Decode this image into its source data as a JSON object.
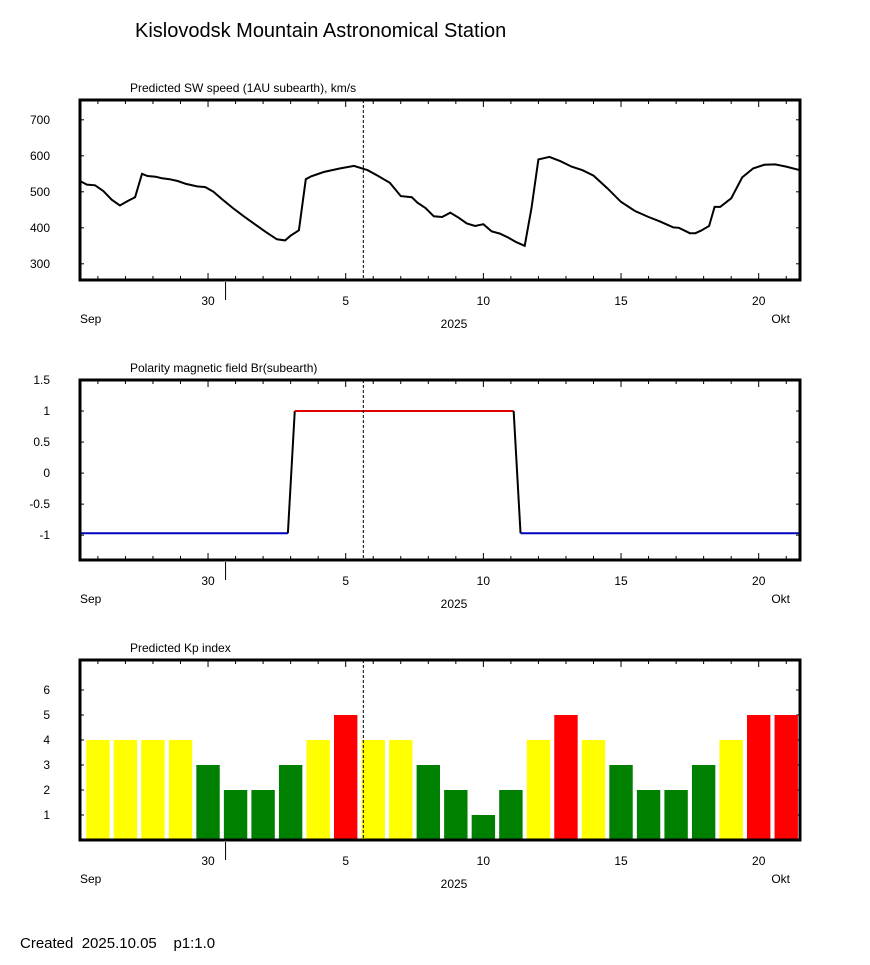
{
  "title": "Kislovodsk Mountain Astronomical Station",
  "footer": "Created  2025.10.05    p1:1.0",
  "x_axis": {
    "ticks": [
      {
        "day": 30,
        "label": "30"
      },
      {
        "day": 35,
        "label": "5"
      },
      {
        "day": 40,
        "label": "10"
      },
      {
        "day": 45,
        "label": "15"
      },
      {
        "day": 50,
        "label": "20"
      }
    ],
    "start_label": "Sep",
    "end_label": "Okt",
    "year_label": "2025",
    "month_boundary_day": 31,
    "range": [
      25.35,
      51.5
    ],
    "current_day": 35.64
  },
  "chart_data": [
    {
      "type": "line",
      "title": "Predicted SW speed (1AU subearth), km/s",
      "ylim": [
        255,
        755
      ],
      "yticks": [
        300,
        400,
        500,
        600,
        700
      ],
      "color": "#000000",
      "series": [
        {
          "x": [
            25.35,
            25.6,
            25.9,
            26.2,
            26.5,
            26.8,
            27.1,
            27.35,
            27.6,
            27.8,
            28.1,
            28.3,
            28.6,
            28.9,
            29.2,
            29.6,
            29.9,
            30.2,
            30.5,
            30.9,
            31.3,
            31.7,
            32.1,
            32.5,
            32.8,
            33.0,
            33.3,
            33.55,
            33.75,
            34.2,
            34.8,
            35.3,
            35.8,
            36.2,
            36.6,
            37.0,
            37.4,
            37.6,
            37.9,
            38.2,
            38.5,
            38.8,
            39.1,
            39.4,
            39.7,
            40.0,
            40.3,
            40.6,
            40.9,
            41.2,
            41.5,
            41.75,
            42.0,
            42.4,
            42.8,
            43.2,
            43.6,
            44.0,
            44.5,
            45.0,
            45.5,
            46.0,
            46.4,
            46.7,
            46.9,
            47.1,
            47.5,
            47.7,
            47.9,
            48.2,
            48.4,
            48.6,
            49.0,
            49.4,
            49.8,
            50.2,
            50.6,
            51.0,
            51.5
          ],
          "y": [
            530,
            520,
            518,
            502,
            478,
            462,
            475,
            485,
            550,
            544,
            542,
            538,
            535,
            530,
            522,
            515,
            513,
            500,
            480,
            455,
            432,
            410,
            388,
            368,
            365,
            378,
            393,
            535,
            543,
            555,
            565,
            572,
            560,
            543,
            525,
            488,
            485,
            470,
            455,
            432,
            430,
            442,
            428,
            412,
            405,
            410,
            390,
            384,
            373,
            360,
            350,
            455,
            590,
            597,
            585,
            570,
            560,
            545,
            510,
            472,
            447,
            430,
            418,
            408,
            401,
            400,
            385,
            385,
            392,
            405,
            458,
            458,
            482,
            540,
            565,
            575,
            576,
            570,
            560
          ]
        }
      ]
    },
    {
      "type": "line",
      "title": "Polarity magnetic field  Br(subearth)",
      "ylim": [
        -1.4,
        1.5
      ],
      "yticks": [
        -1,
        -0.5,
        0,
        0.5,
        1,
        1.5
      ],
      "ytick_labels": [
        "-1",
        "-0.5",
        "0",
        "0.5",
        "1",
        "1.5"
      ],
      "polarity_colors": {
        "positive": "#e00000",
        "negative": "#0000c0",
        "transition": "#000000"
      },
      "series": [
        {
          "x": [
            25.35,
            32.9,
            33.15,
            41.1,
            41.35,
            51.5
          ],
          "y": [
            -0.97,
            -0.97,
            1.0,
            1.0,
            -0.97,
            -0.97
          ]
        }
      ]
    },
    {
      "type": "bar",
      "title": "Predicted Kp index",
      "ylim": [
        0,
        7.2
      ],
      "yticks": [
        1,
        2,
        3,
        4,
        5,
        6
      ],
      "bar_width_days": 0.85,
      "level_colors": {
        "quiet": "#008000",
        "active": "#ffff00",
        "storm": "#ff0000"
      },
      "x": [
        26.0,
        27.0,
        28.0,
        29.0,
        30.0,
        31.0,
        32.0,
        33.0,
        34.0,
        35.0,
        36.0,
        37.0,
        38.0,
        39.0,
        40.0,
        41.0,
        42.0,
        43.0,
        44.0,
        45.0,
        46.0,
        47.0,
        48.0,
        49.0,
        50.0,
        51.0
      ],
      "values": [
        4,
        4,
        4,
        4,
        3,
        2,
        2,
        3,
        4,
        5,
        4,
        4,
        3,
        2,
        1,
        2,
        4,
        5,
        4,
        3,
        2,
        2,
        3,
        4,
        5,
        5
      ]
    }
  ]
}
